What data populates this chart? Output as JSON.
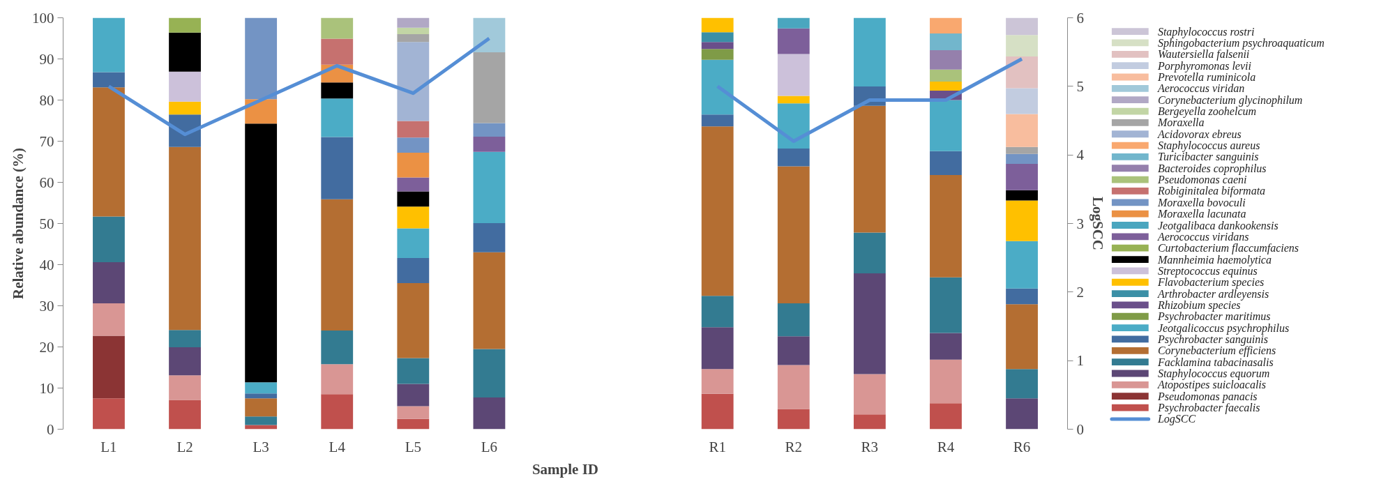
{
  "chart_data": {
    "type": "bar",
    "stacked": true,
    "xlabel": "Sample ID",
    "ylabel": "Relative abundance (%)",
    "y2label": "LogSCC",
    "categories": [
      "L1",
      "L2",
      "L3",
      "L4",
      "L5",
      "L6",
      null,
      null,
      "R1",
      "R2",
      "R3",
      "R4",
      "R6"
    ],
    "ylim": [
      0,
      100
    ],
    "yticks": [
      0,
      10,
      20,
      30,
      40,
      50,
      60,
      70,
      80,
      90,
      100
    ],
    "y2lim": [
      0,
      6
    ],
    "y2ticks": [
      0,
      1,
      2,
      3,
      4,
      5,
      6
    ],
    "legend": "right",
    "series": [
      {
        "name": "Psychrobacter faecalis",
        "color": "#c0504d",
        "values": [
          7.5,
          7.1,
          1.0,
          8.5,
          2.5,
          null,
          null,
          null,
          8.6,
          4.9,
          3.6,
          6.3,
          null
        ]
      },
      {
        "name": "Pseudomonas panacis",
        "color": "#8b3434",
        "values": [
          15.2,
          null,
          null,
          null,
          null,
          null,
          null,
          null,
          null,
          null,
          null,
          null,
          null
        ]
      },
      {
        "name": "Atopostipes suicloacalis",
        "color": "#d99694",
        "values": [
          7.9,
          6.0,
          null,
          7.3,
          3.1,
          null,
          null,
          null,
          6.0,
          10.7,
          9.8,
          10.6,
          null
        ]
      },
      {
        "name": "Staphylococcus equorum",
        "color": "#5c4775",
        "values": [
          10.0,
          6.8,
          null,
          null,
          5.4,
          7.7,
          null,
          null,
          10.2,
          7.0,
          24.5,
          6.5,
          7.5
        ]
      },
      {
        "name": "Facklamina tabacinasalis",
        "color": "#337b91",
        "values": [
          11.1,
          4.2,
          2.1,
          8.2,
          6.3,
          11.8,
          null,
          null,
          7.6,
          8.0,
          9.9,
          13.5,
          7.1
        ]
      },
      {
        "name": "Corynebacterium efficiens",
        "color": "#b46e32",
        "values": [
          31.4,
          44.5,
          4.4,
          31.9,
          18.2,
          23.5,
          null,
          null,
          41.2,
          33.3,
          30.8,
          24.9,
          15.8
        ]
      },
      {
        "name": "Psychrobacter sanguinis",
        "color": "#426ca0",
        "values": [
          3.7,
          7.9,
          1.2,
          15.1,
          6.1,
          7.1,
          null,
          null,
          2.9,
          4.3,
          4.7,
          5.8,
          3.8
        ]
      },
      {
        "name": "Jeotgalicoccus psychrophilus",
        "color": "#4bacc6",
        "values": [
          13.2,
          null,
          2.7,
          9.4,
          7.2,
          17.3,
          null,
          null,
          13.3,
          11.0,
          16.7,
          12.4,
          11.5
        ]
      },
      {
        "name": "Psychrobacter maritimus",
        "color": "#7f9b47",
        "values": [
          null,
          null,
          null,
          null,
          null,
          null,
          null,
          null,
          2.6,
          null,
          null,
          null,
          null
        ]
      },
      {
        "name": "Rhizobium species",
        "color": "#6a4f8a",
        "values": [
          null,
          null,
          null,
          null,
          null,
          null,
          null,
          null,
          1.7,
          null,
          null,
          2.3,
          null
        ]
      },
      {
        "name": "Arthrobacter ardleyensis",
        "color": "#3b8fa6",
        "values": [
          null,
          null,
          null,
          null,
          null,
          null,
          null,
          null,
          2.4,
          null,
          null,
          null,
          null
        ]
      },
      {
        "name": "Flavobacterium species",
        "color": "#ffc000",
        "values": [
          null,
          3.1,
          null,
          null,
          5.3,
          null,
          null,
          null,
          3.5,
          1.8,
          null,
          2.2,
          9.9
        ]
      },
      {
        "name": "Streptococcus equinus",
        "color": "#ccc1da",
        "values": [
          null,
          7.3,
          null,
          null,
          null,
          null,
          null,
          null,
          null,
          10.2,
          null,
          null,
          null
        ]
      },
      {
        "name": "Mannheimia haemolytica",
        "color": "#000000",
        "values": [
          null,
          9.5,
          62.9,
          3.9,
          3.7,
          null,
          null,
          null,
          null,
          null,
          null,
          null,
          2.5
        ]
      },
      {
        "name": "Curtobacterium flaccumfaciens",
        "color": "#97b254",
        "values": [
          null,
          3.6,
          null,
          null,
          null,
          null,
          null,
          null,
          null,
          null,
          null,
          null,
          null
        ]
      },
      {
        "name": "Aerococcus viridans",
        "color": "#7d5f9a",
        "values": [
          null,
          null,
          null,
          null,
          3.4,
          3.7,
          null,
          null,
          null,
          6.2,
          null,
          null,
          6.4
        ]
      },
      {
        "name": "Jeotgalibaca dankookensis",
        "color": "#4aa6bf",
        "values": [
          null,
          null,
          null,
          null,
          null,
          null,
          null,
          null,
          null,
          2.6,
          null,
          null,
          null
        ]
      },
      {
        "name": "Moraxella lacunata",
        "color": "#eb9144",
        "values": [
          null,
          null,
          5.9,
          4.3,
          6.0,
          null,
          null,
          null,
          null,
          null,
          null,
          null,
          null
        ]
      },
      {
        "name": "Moraxella bovoculi",
        "color": "#7394c4",
        "values": [
          null,
          null,
          19.8,
          null,
          3.7,
          3.3,
          null,
          null,
          null,
          null,
          null,
          null,
          2.4
        ]
      },
      {
        "name": "Robiginitalea biformata",
        "color": "#c6716f",
        "values": [
          null,
          null,
          null,
          6.3,
          4.0,
          null,
          null,
          null,
          null,
          null,
          null,
          null,
          null
        ]
      },
      {
        "name": "Pseudomonas caeni",
        "color": "#aac27b",
        "values": [
          null,
          null,
          null,
          5.1,
          null,
          null,
          null,
          null,
          null,
          null,
          null,
          2.9,
          null
        ]
      },
      {
        "name": "Bacteroides coprophilus",
        "color": "#9580ac",
        "values": [
          null,
          null,
          null,
          null,
          null,
          null,
          null,
          null,
          null,
          null,
          null,
          4.7,
          null
        ]
      },
      {
        "name": "Turicibacter sanguinis",
        "color": "#72b6cc",
        "values": [
          null,
          null,
          null,
          null,
          null,
          null,
          null,
          null,
          null,
          null,
          null,
          4.1,
          null
        ]
      },
      {
        "name": "Staphylococcus aureus",
        "color": "#f9a86f",
        "values": [
          null,
          null,
          null,
          null,
          null,
          null,
          null,
          null,
          null,
          null,
          null,
          3.8,
          null
        ]
      },
      {
        "name": "Acidovorax ebreus",
        "color": "#a2b4d4",
        "values": [
          null,
          null,
          null,
          null,
          19.2,
          null,
          null,
          null,
          null,
          null,
          null,
          null,
          null
        ]
      },
      {
        "name": "Moraxella",
        "color": "#a5a5a5",
        "values": [
          null,
          null,
          null,
          null,
          1.9,
          17.2,
          null,
          null,
          null,
          null,
          null,
          null,
          1.7
        ]
      },
      {
        "name": "Bergeyella zoohelcum",
        "color": "#c2d5a5",
        "values": [
          null,
          null,
          null,
          null,
          1.6,
          null,
          null,
          null,
          null,
          null,
          null,
          null,
          null
        ]
      },
      {
        "name": "Corynebacterium glycinophilum",
        "color": "#b1a8c5",
        "values": [
          null,
          null,
          null,
          null,
          2.4,
          null,
          null,
          null,
          null,
          null,
          null,
          null,
          null
        ]
      },
      {
        "name": "Aerococcus viridan",
        "color": "#a1c9da",
        "values": [
          null,
          null,
          null,
          null,
          null,
          8.4,
          null,
          null,
          null,
          null,
          null,
          null,
          null
        ]
      },
      {
        "name": "Prevotella ruminicola",
        "color": "#f8bd9e",
        "values": [
          null,
          null,
          null,
          null,
          null,
          null,
          null,
          null,
          null,
          null,
          null,
          null,
          8.0
        ]
      },
      {
        "name": "Porphyromonas levii",
        "color": "#c2cce0",
        "values": [
          null,
          null,
          null,
          null,
          null,
          null,
          null,
          null,
          null,
          null,
          null,
          null,
          6.3
        ]
      },
      {
        "name": "Wautersiella falsenii",
        "color": "#e2c1c1",
        "values": [
          null,
          null,
          null,
          null,
          null,
          null,
          null,
          null,
          null,
          null,
          null,
          null,
          7.7
        ]
      },
      {
        "name": "Sphingobacterium psychroaquaticum",
        "color": "#d6e0c5",
        "values": [
          null,
          null,
          null,
          null,
          null,
          null,
          null,
          null,
          null,
          null,
          null,
          null,
          5.2
        ]
      },
      {
        "name": "Staphylococcus rostri",
        "color": "#ccc5d7",
        "values": [
          null,
          null,
          null,
          null,
          null,
          null,
          null,
          null,
          null,
          null,
          null,
          null,
          4.2
        ]
      },
      {
        "name": "LogSCC",
        "type": "line",
        "axis": "y2",
        "color": "#558ed5",
        "values": [
          5.0,
          4.3,
          4.8,
          5.3,
          4.9,
          5.7,
          null,
          null,
          5.0,
          4.2,
          4.8,
          4.8,
          5.4
        ]
      }
    ]
  }
}
